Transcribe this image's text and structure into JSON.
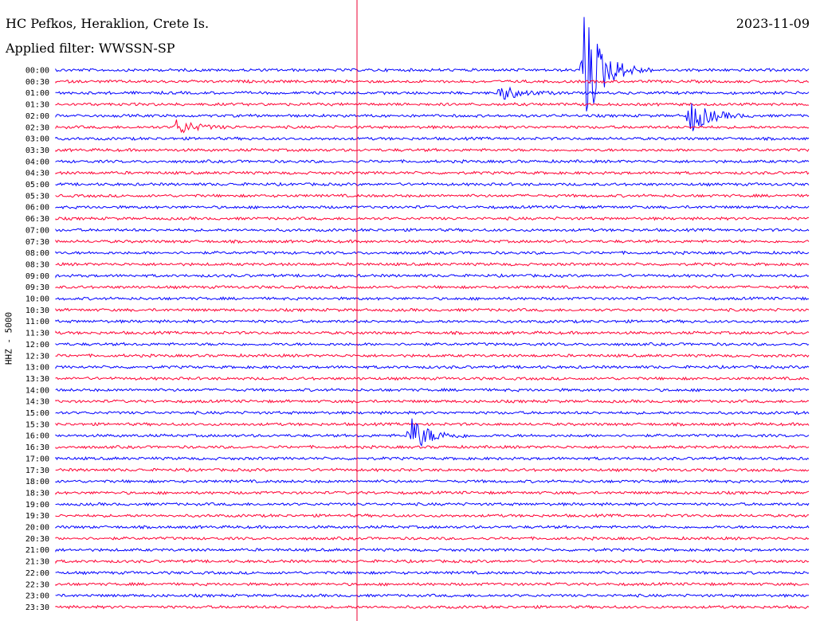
{
  "header": {
    "station": "HC Pefkos, Heraklion, Crete Is.",
    "filter": "Applied filter: WWSSN-SP",
    "date": "2023-11-09"
  },
  "chart_data": {
    "type": "line",
    "title": "HC Pefkos, Heraklion, Crete Is.",
    "subtitle": "Applied filter: WWSSN-SP",
    "date": "2023-11-09",
    "ylabel": "HHZ - 5000",
    "trace_labels": [
      "00:00",
      "00:30",
      "01:00",
      "01:30",
      "02:00",
      "02:30",
      "03:00",
      "03:30",
      "04:00",
      "04:30",
      "05:00",
      "05:30",
      "06:00",
      "06:30",
      "07:00",
      "07:30",
      "08:00",
      "08:30",
      "09:00",
      "09:30",
      "10:00",
      "10:30",
      "11:00",
      "11:30",
      "12:00",
      "12:30",
      "13:00",
      "13:30",
      "14:00",
      "14:30",
      "15:00",
      "15:30",
      "16:00",
      "16:30",
      "17:00",
      "17:30",
      "18:00",
      "18:30",
      "19:00",
      "19:30",
      "20:00",
      "20:30",
      "21:00",
      "21:30",
      "22:00",
      "22:30",
      "23:00",
      "23:30"
    ],
    "trace_colors": [
      "#0000ff",
      "#ff0033"
    ],
    "marker_color": "#ee0033",
    "marker_position_fraction": 0.39,
    "events": [
      {
        "trace": "00:00",
        "at": 0.7,
        "amplitude": "large"
      },
      {
        "trace": "01:00",
        "at": 0.59,
        "amplitude": "small"
      },
      {
        "trace": "02:00",
        "at": 0.84,
        "amplitude": "medium"
      },
      {
        "trace": "02:30",
        "at": 0.16,
        "amplitude": "small"
      },
      {
        "trace": "16:00",
        "at": 0.47,
        "amplitude": "medium"
      }
    ]
  }
}
